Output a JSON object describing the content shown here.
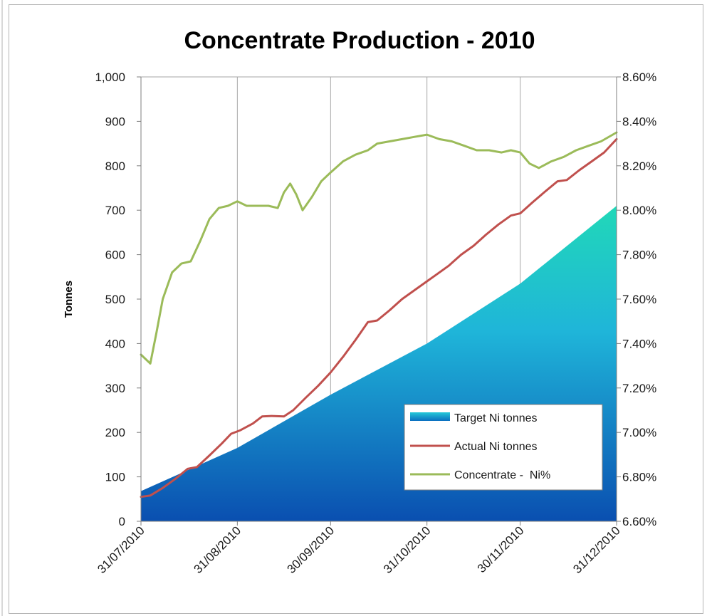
{
  "chart_data": {
    "type": "area",
    "title": "Concentrate Production - 2010",
    "ylabel": "Tonnes",
    "xlabel": "",
    "x_tick_labels": [
      "31/07/2010",
      "31/08/2010",
      "30/09/2010",
      "31/10/2010",
      "30/11/2010",
      "31/12/2010"
    ],
    "x_range": [
      "31/07/2010",
      "31/12/2010"
    ],
    "y_left": {
      "min": 0,
      "max": 1000,
      "step": 100,
      "tick_labels": [
        "0",
        "100",
        "200",
        "300",
        "400",
        "500",
        "600",
        "700",
        "800",
        "900",
        "1,000"
      ]
    },
    "y_right": {
      "min": 6.6,
      "max": 8.6,
      "step": 0.2,
      "unit": "%",
      "tick_labels": [
        "6.60%",
        "6.80%",
        "7.00%",
        "7.20%",
        "7.40%",
        "7.60%",
        "7.80%",
        "8.00%",
        "8.20%",
        "8.40%",
        "8.60%"
      ]
    },
    "grid": "vertical",
    "legend_position": "bottom-right",
    "series": [
      {
        "name": "Target Ni tonnes",
        "type": "area",
        "axis": "left",
        "color_top": "#21d8b8",
        "color_bottom": "#0a4fb0",
        "points": [
          [
            "31/07/2010",
            68
          ],
          [
            "31/08/2010",
            165
          ],
          [
            "30/09/2010",
            285
          ],
          [
            "31/10/2010",
            400
          ],
          [
            "30/11/2010",
            535
          ],
          [
            "31/12/2010",
            710
          ]
        ]
      },
      {
        "name": "Actual Ni tonnes",
        "type": "line",
        "axis": "left",
        "color": "#c0504d",
        "points": [
          [
            "31/07/2010",
            55
          ],
          [
            "03/08/2010",
            58
          ],
          [
            "07/08/2010",
            75
          ],
          [
            "11/08/2010",
            95
          ],
          [
            "15/08/2010",
            118
          ],
          [
            "18/08/2010",
            122
          ],
          [
            "22/08/2010",
            148
          ],
          [
            "26/08/2010",
            175
          ],
          [
            "29/08/2010",
            197
          ],
          [
            "01/09/2010",
            205
          ],
          [
            "05/09/2010",
            220
          ],
          [
            "08/09/2010",
            236
          ],
          [
            "11/09/2010",
            237
          ],
          [
            "15/09/2010",
            236
          ],
          [
            "18/09/2010",
            250
          ],
          [
            "22/09/2010",
            278
          ],
          [
            "26/09/2010",
            305
          ],
          [
            "30/09/2010",
            335
          ],
          [
            "04/10/2010",
            370
          ],
          [
            "08/10/2010",
            408
          ],
          [
            "12/10/2010",
            448
          ],
          [
            "15/10/2010",
            452
          ],
          [
            "19/10/2010",
            475
          ],
          [
            "23/10/2010",
            500
          ],
          [
            "27/10/2010",
            520
          ],
          [
            "31/10/2010",
            540
          ],
          [
            "03/11/2010",
            555
          ],
          [
            "07/11/2010",
            575
          ],
          [
            "11/11/2010",
            600
          ],
          [
            "15/11/2010",
            620
          ],
          [
            "19/11/2010",
            645
          ],
          [
            "23/11/2010",
            668
          ],
          [
            "27/11/2010",
            688
          ],
          [
            "30/11/2010",
            693
          ],
          [
            "04/12/2010",
            718
          ],
          [
            "08/12/2010",
            742
          ],
          [
            "12/12/2010",
            765
          ],
          [
            "15/12/2010",
            768
          ],
          [
            "19/12/2010",
            790
          ],
          [
            "23/12/2010",
            810
          ],
          [
            "27/12/2010",
            830
          ],
          [
            "31/12/2010",
            860
          ]
        ]
      },
      {
        "name": "Concentrate -  Ni%",
        "type": "line",
        "axis": "right",
        "color": "#9bbb59",
        "points": [
          [
            "31/07/2010",
            7.35
          ],
          [
            "03/08/2010",
            7.31
          ],
          [
            "05/08/2010",
            7.45
          ],
          [
            "07/08/2010",
            7.6
          ],
          [
            "10/08/2010",
            7.72
          ],
          [
            "13/08/2010",
            7.76
          ],
          [
            "16/08/2010",
            7.77
          ],
          [
            "19/08/2010",
            7.86
          ],
          [
            "22/08/2010",
            7.96
          ],
          [
            "25/08/2010",
            8.01
          ],
          [
            "28/08/2010",
            8.02
          ],
          [
            "31/08/2010",
            8.04
          ],
          [
            "03/09/2010",
            8.02
          ],
          [
            "06/09/2010",
            8.02
          ],
          [
            "10/09/2010",
            8.02
          ],
          [
            "13/09/2010",
            8.01
          ],
          [
            "15/09/2010",
            8.08
          ],
          [
            "17/09/2010",
            8.12
          ],
          [
            "19/09/2010",
            8.07
          ],
          [
            "21/09/2010",
            8.0
          ],
          [
            "24/09/2010",
            8.06
          ],
          [
            "27/09/2010",
            8.13
          ],
          [
            "30/09/2010",
            8.17
          ],
          [
            "04/10/2010",
            8.22
          ],
          [
            "08/10/2010",
            8.25
          ],
          [
            "12/10/2010",
            8.27
          ],
          [
            "15/10/2010",
            8.3
          ],
          [
            "19/10/2010",
            8.31
          ],
          [
            "23/10/2010",
            8.32
          ],
          [
            "27/10/2010",
            8.33
          ],
          [
            "31/10/2010",
            8.34
          ],
          [
            "04/11/2010",
            8.32
          ],
          [
            "08/11/2010",
            8.31
          ],
          [
            "12/11/2010",
            8.29
          ],
          [
            "16/11/2010",
            8.27
          ],
          [
            "20/11/2010",
            8.27
          ],
          [
            "24/11/2010",
            8.26
          ],
          [
            "27/11/2010",
            8.27
          ],
          [
            "30/11/2010",
            8.26
          ],
          [
            "03/12/2010",
            8.21
          ],
          [
            "06/12/2010",
            8.19
          ],
          [
            "10/12/2010",
            8.22
          ],
          [
            "14/12/2010",
            8.24
          ],
          [
            "18/12/2010",
            8.27
          ],
          [
            "22/12/2010",
            8.29
          ],
          [
            "26/12/2010",
            8.31
          ],
          [
            "31/12/2010",
            8.35
          ]
        ]
      }
    ]
  }
}
